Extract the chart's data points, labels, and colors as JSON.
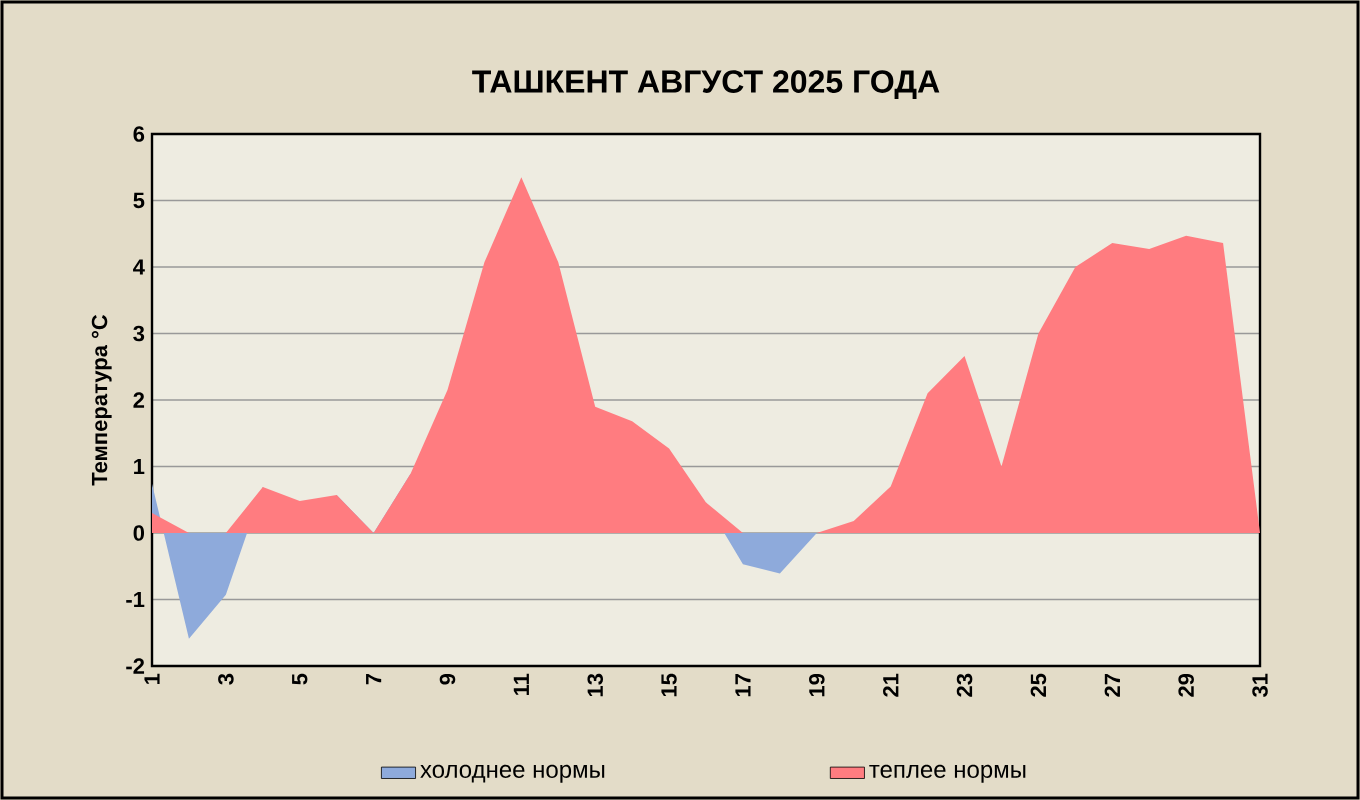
{
  "chart_data": {
    "type": "area",
    "title": "ТАШКЕНТ АВГУСТ 2025 ГОДА",
    "ylabel": "Температура °C",
    "categories": [
      "1",
      null,
      "3",
      null,
      "5",
      null,
      "7",
      null,
      "9",
      null,
      "11",
      null,
      "13",
      null,
      "15",
      null,
      "17",
      null,
      "19",
      null,
      "21",
      null,
      "23",
      null,
      "25",
      null,
      "27",
      null,
      "29",
      null,
      "31"
    ],
    "series": [
      {
        "name": "холоднее нормы",
        "color": "#8eaadb",
        "values": [
          0.74,
          -1.59,
          -0.93,
          0.69,
          0,
          0.57,
          0,
          0.89,
          0,
          0,
          0,
          0,
          0,
          0,
          0,
          0.46,
          -0.47,
          -0.61,
          0,
          0,
          0,
          0,
          0,
          0,
          0,
          0,
          0,
          0,
          0,
          0,
          0
        ]
      },
      {
        "name": "теплее нормы",
        "color": "#ff7c80",
        "values": [
          0.3,
          0,
          0,
          0.69,
          0.48,
          0.57,
          0,
          0.89,
          2.15,
          4.07,
          5.35,
          4.07,
          1.9,
          1.68,
          1.27,
          0.46,
          0,
          0,
          0,
          0.18,
          0.7,
          2.1,
          2.66,
          1.0,
          3.0,
          4.0,
          4.36,
          4.27,
          4.47,
          4.36,
          0
        ]
      }
    ],
    "ylim": [
      -2,
      6
    ],
    "yticks": [
      -2,
      -1,
      0,
      1,
      2,
      3,
      4,
      5,
      6
    ],
    "grid": "y",
    "legend": "bottom"
  }
}
